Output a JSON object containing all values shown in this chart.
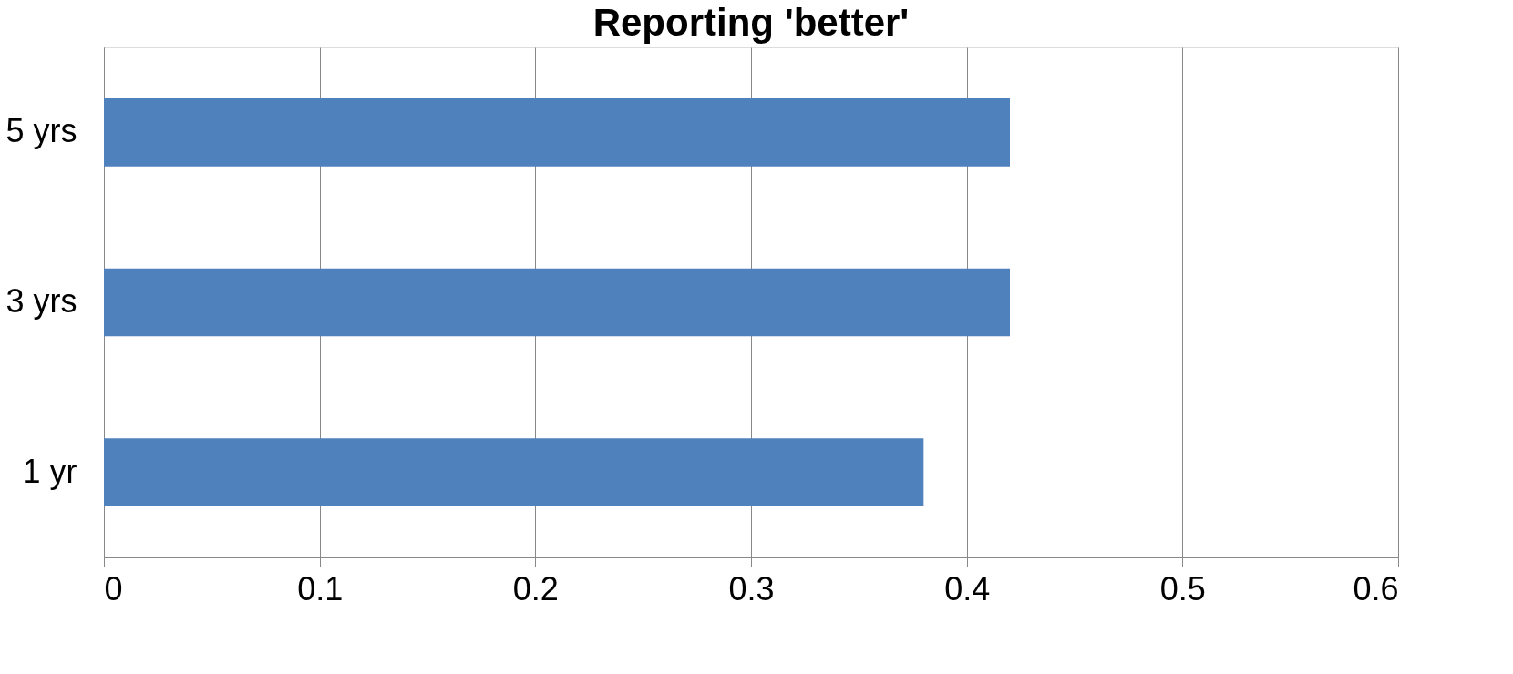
{
  "chart_data": {
    "type": "bar",
    "orientation": "horizontal",
    "title": "Reporting 'better'",
    "categories": [
      "5 yrs",
      "3 yrs",
      "1 yr"
    ],
    "values": [
      0.42,
      0.42,
      0.38
    ],
    "color": "#4f81bd",
    "xlim": [
      0,
      0.6
    ],
    "xticks": [
      0,
      0.1,
      0.2,
      0.3,
      0.4,
      0.5,
      0.6
    ],
    "grid": "x"
  }
}
